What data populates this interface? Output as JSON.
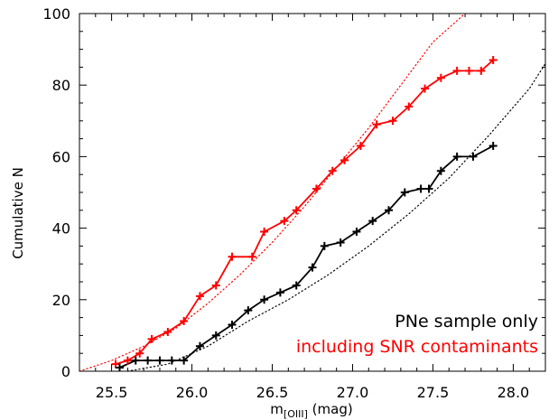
{
  "chart_data": {
    "type": "line",
    "xlabel": "m[OIII] (mag)",
    "xlabel_parts": {
      "main": "m",
      "sub": "[OIII]",
      "rest": " (mag)"
    },
    "ylabel": "Cumulative N",
    "xlim": [
      25.3,
      28.2
    ],
    "ylim": [
      0,
      100
    ],
    "x_ticks": [
      25.5,
      26.0,
      26.5,
      27.0,
      27.5,
      28.0
    ],
    "x_tick_labels": [
      "25.5",
      "26.0",
      "26.5",
      "27.0",
      "27.5",
      "28.0"
    ],
    "y_ticks": [
      0,
      20,
      40,
      60,
      80,
      100
    ],
    "y_tick_labels": [
      "0",
      "20",
      "40",
      "60",
      "80",
      "100"
    ],
    "grid": false,
    "legend_position": "bottom-right",
    "series": [
      {
        "name": "PNe sample only",
        "color": "#000000",
        "style": "solid-with-plus-markers",
        "x": [
          25.55,
          25.65,
          25.725,
          25.8,
          25.875,
          25.95,
          26.05,
          26.15,
          26.25,
          26.35,
          26.45,
          26.55,
          26.65,
          26.75,
          26.825,
          26.925,
          27.025,
          27.125,
          27.225,
          27.325,
          27.425,
          27.475,
          27.55,
          27.65,
          27.75,
          27.875
        ],
        "y": [
          1,
          3,
          3,
          3,
          3,
          3,
          7,
          10,
          13,
          17,
          20,
          22,
          24,
          29,
          35,
          36,
          39,
          42,
          45,
          50,
          51,
          51,
          56,
          60,
          60,
          63
        ]
      },
      {
        "name": "including SNR contaminants",
        "color": "#ff0000",
        "style": "solid-with-plus-markers",
        "x": [
          25.525,
          25.6,
          25.675,
          25.75,
          25.85,
          25.95,
          26.05,
          26.15,
          26.25,
          26.375,
          26.45,
          26.575,
          26.65,
          26.775,
          26.875,
          26.95,
          27.05,
          27.15,
          27.25,
          27.35,
          27.45,
          27.55,
          27.65,
          27.725,
          27.8,
          27.875
        ],
        "y": [
          2,
          3,
          5,
          9,
          11,
          14,
          21,
          24,
          32,
          32,
          39,
          42,
          45,
          51,
          56,
          59,
          63,
          69,
          70,
          74,
          79,
          82,
          84,
          84,
          84,
          87
        ]
      }
    ],
    "fit_lines": [
      {
        "color": "#000000",
        "style": "dotted",
        "x": [
          25.6,
          25.85,
          26.1,
          26.35,
          26.6,
          26.85,
          27.1,
          27.35,
          27.6,
          27.85,
          28.1,
          28.2
        ],
        "y": [
          0,
          2,
          7,
          14,
          20,
          27,
          35,
          44,
          54,
          66,
          79,
          86
        ]
      },
      {
        "color": "#ff0000",
        "style": "dotted",
        "x": [
          25.3,
          25.5,
          25.7,
          25.9,
          26.1,
          26.3,
          26.5,
          26.7,
          26.9,
          27.1,
          27.3,
          27.5,
          27.7
        ],
        "y": [
          0,
          3,
          7,
          12,
          19,
          27,
          36,
          46,
          57,
          68,
          80,
          92,
          100
        ]
      }
    ]
  },
  "legend": {
    "line1": "PNe sample only",
    "line2": "including SNR contaminants",
    "line1_color": "#000000",
    "line2_color": "#ff0000"
  }
}
